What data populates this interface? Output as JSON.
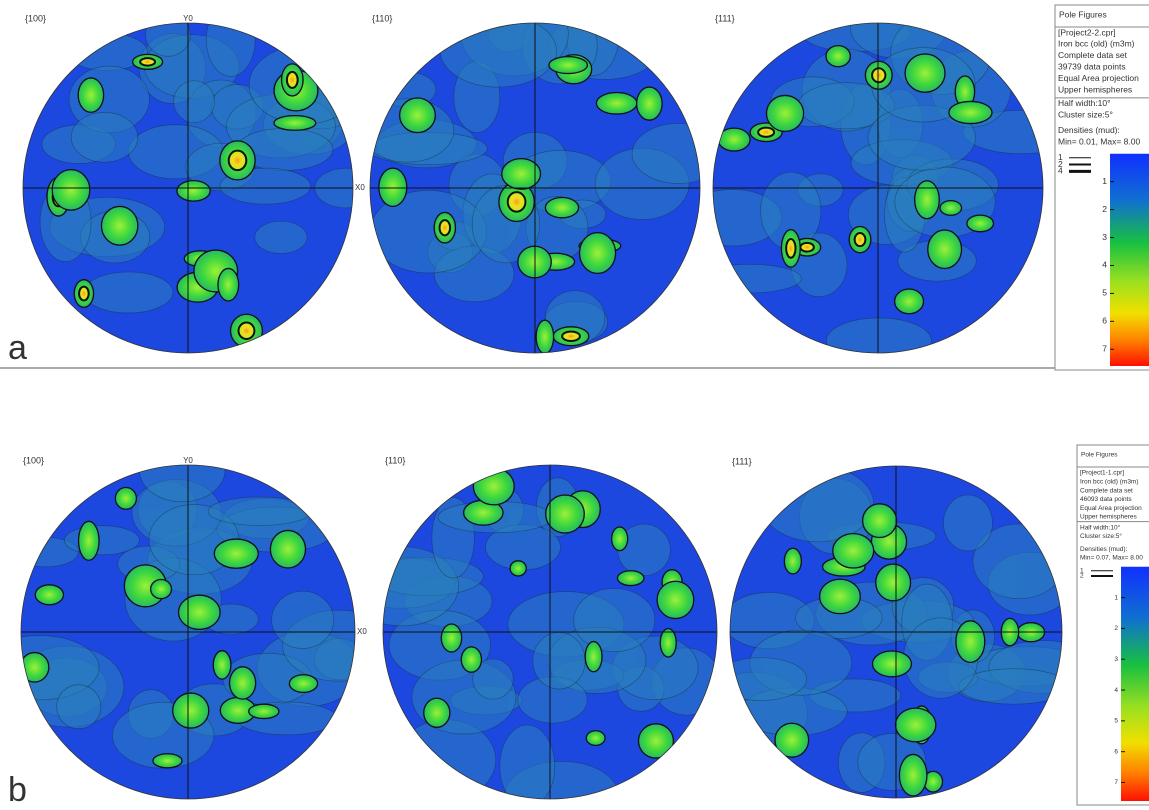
{
  "panels": [
    {
      "label": "a",
      "figures": [
        {
          "title": "{100}",
          "y_axis": "Y0",
          "x_axis": "X0"
        },
        {
          "title": "{110}"
        },
        {
          "title": "{111}"
        }
      ],
      "legend": {
        "title": "Pole Figures",
        "info": [
          "[Project2-2.cpr]",
          "Iron bcc (old) (m3m)",
          "Complete data set",
          "39739 data points",
          "Equal Area projection",
          "Upper hemispheres"
        ],
        "settings": [
          "Half width:10°",
          "Cluster size:5°",
          "Densities (mud):",
          "Min= 0.01, Max= 8.00"
        ],
        "contour_levels": [
          "1",
          "2",
          "4"
        ],
        "colorbar_ticks": [
          "1",
          "2",
          "3",
          "4",
          "5",
          "6",
          "7"
        ]
      }
    },
    {
      "label": "b",
      "figures": [
        {
          "title": "{100}",
          "y_axis": "Y0",
          "x_axis": "X0"
        },
        {
          "title": "{110}"
        },
        {
          "title": "{111}"
        }
      ],
      "legend": {
        "title": "Pole Figures",
        "info": [
          "[Project1-1.cpr]",
          "Iron bcc (old) (m3m)",
          "Complete data set",
          "46093 data points",
          "Equal Area projection",
          "Upper hemispheres"
        ],
        "settings": [
          "Half width:10°",
          "Cluster size:5°",
          "Densities (mud):",
          "Min= 0.07, Max= 8.00"
        ],
        "contour_levels": [
          "1",
          "2"
        ],
        "colorbar_ticks": [
          "1",
          "2",
          "3",
          "4",
          "5",
          "6",
          "7"
        ]
      }
    }
  ]
}
